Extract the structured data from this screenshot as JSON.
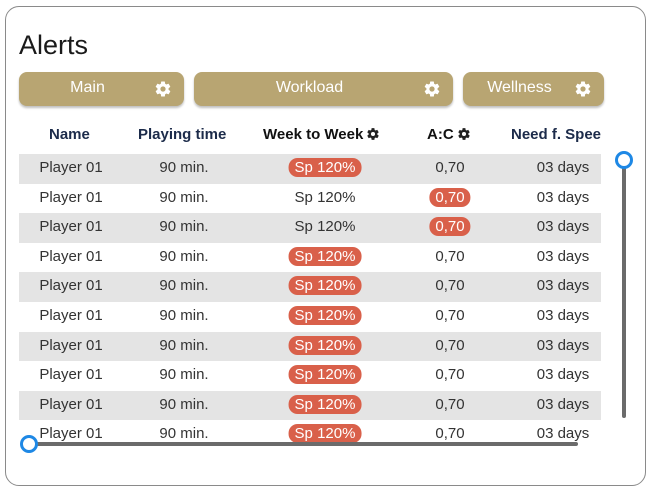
{
  "title": "Alerts",
  "tabs": [
    {
      "label": "Main",
      "icon": "gear-icon"
    },
    {
      "label": "Workload",
      "icon": "gear-icon"
    },
    {
      "label": "Wellness",
      "icon": "gear-icon"
    }
  ],
  "columns": [
    "Name",
    "Playing time",
    "Week to Week",
    "A:C",
    "Need f. Speed"
  ],
  "rows": [
    {
      "name": "Player 01",
      "time": "90 min.",
      "week": "Sp 120%",
      "week_alert": true,
      "ac": "0,70",
      "ac_alert": false,
      "need": "03 days"
    },
    {
      "name": "Player 01",
      "time": "90 min.",
      "week": "Sp 120%",
      "week_alert": false,
      "ac": "0,70",
      "ac_alert": true,
      "need": "03 days"
    },
    {
      "name": "Player 01",
      "time": "90 min.",
      "week": "Sp 120%",
      "week_alert": false,
      "ac": "0,70",
      "ac_alert": true,
      "need": "03 days"
    },
    {
      "name": "Player 01",
      "time": "90 min.",
      "week": "Sp 120%",
      "week_alert": true,
      "ac": "0,70",
      "ac_alert": false,
      "need": "03 days"
    },
    {
      "name": "Player 01",
      "time": "90 min.",
      "week": "Sp 120%",
      "week_alert": true,
      "ac": "0,70",
      "ac_alert": false,
      "need": "03 days"
    },
    {
      "name": "Player 01",
      "time": "90 min.",
      "week": "Sp 120%",
      "week_alert": true,
      "ac": "0,70",
      "ac_alert": false,
      "need": "03 days"
    },
    {
      "name": "Player 01",
      "time": "90 min.",
      "week": "Sp 120%",
      "week_alert": true,
      "ac": "0,70",
      "ac_alert": false,
      "need": "03 days"
    },
    {
      "name": "Player 01",
      "time": "90 min.",
      "week": "Sp 120%",
      "week_alert": true,
      "ac": "0,70",
      "ac_alert": false,
      "need": "03 days"
    },
    {
      "name": "Player 01",
      "time": "90 min.",
      "week": "Sp 120%",
      "week_alert": true,
      "ac": "0,70",
      "ac_alert": false,
      "need": "03 days"
    },
    {
      "name": "Player 01",
      "time": "90 min.",
      "week": "Sp 120%",
      "week_alert": true,
      "ac": "0,70",
      "ac_alert": false,
      "need": "03 days"
    }
  ],
  "colors": {
    "tab": "#b8a572",
    "alert": "#d9604a",
    "stripe": "#e4e4e4",
    "scroll_handle": "#1e88e5"
  }
}
